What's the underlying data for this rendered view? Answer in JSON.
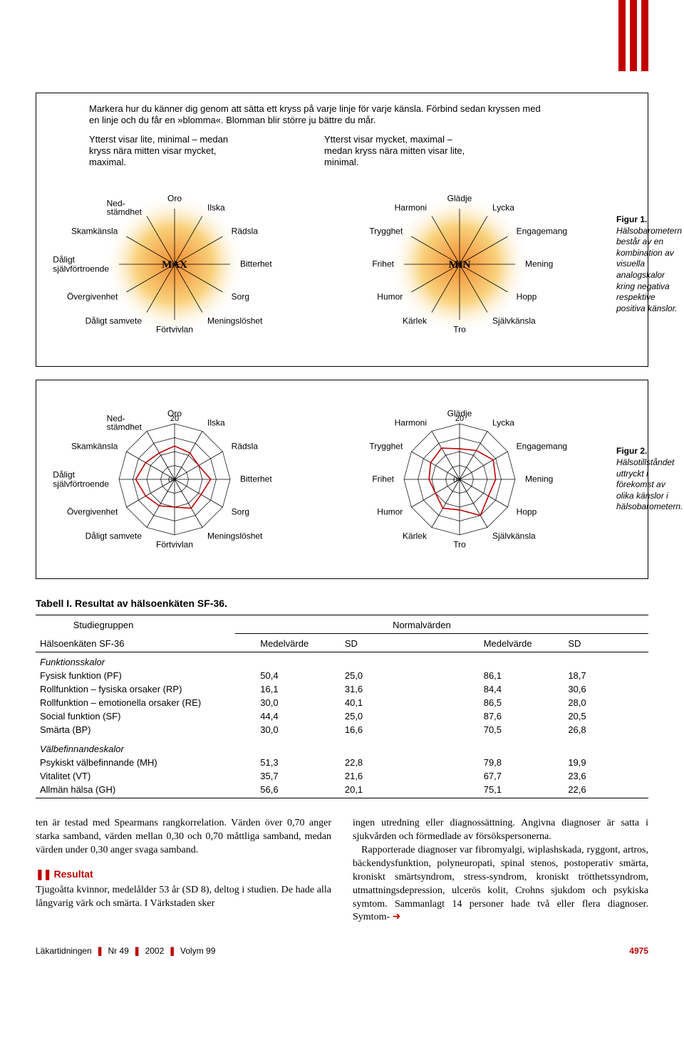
{
  "colors": {
    "stripe1": "#c00000",
    "stripe2": "#c00000",
    "stripe3": "#c00000",
    "box_border": "#000000",
    "radar_fill": "#f9d27e",
    "radar_core": "#f08b2e",
    "radar_line": "#000000",
    "grid": "#000000",
    "data_line": "#c00000",
    "accent": "#c00000"
  },
  "instr": {
    "top": "Markera hur du känner dig genom att sätta ett kryss på varje linje för varje känsla. Förbind sedan kryssen med en linje och du får en »blomma«. Blomman blir större ju bättre du mår.",
    "left": "Ytterst visar lite, minimal – medan kryss nära mitten visar mycket, maximal.",
    "right": "Ytterst visar mycket, maximal – medan kryss nära mitten visar lite, minimal."
  },
  "fig1": {
    "center_left": "MAX",
    "center_right": "MIN",
    "neg_labels": [
      "Oro",
      "Ilska",
      "Rädsla",
      "Bitterhet",
      "Sorg",
      "Meningslöshet",
      "Förtvivlan",
      "Dåligt samvete",
      "Övergivenhet",
      "Dåligt\nsjälvförtroende",
      "Skamkänsla",
      "Ned-\nstämdhet"
    ],
    "pos_labels": [
      "Glädje",
      "Lycka",
      "Engagemang",
      "Mening",
      "Hopp",
      "Självkänsla",
      "Tro",
      "Kärlek",
      "Humor",
      "Frihet",
      "Trygghet",
      "Harmoni"
    ],
    "caption_bold": "Figur 1.",
    "caption": "Hälsobarometern består av en kombination av visuella analogskalor kring negativa respektive positiva känslor."
  },
  "fig2": {
    "scale_outer": "20",
    "scale_inner": "0",
    "neg_values": [
      12,
      11,
      10,
      13,
      11,
      12,
      10,
      11,
      12,
      14,
      12,
      11
    ],
    "pos_values": [
      11,
      12,
      14,
      13,
      12,
      15,
      11,
      12,
      10,
      11,
      12,
      13
    ],
    "caption_bold": "Figur 2.",
    "caption": "Hälsotillståndet uttryckt i förekomst av olika känslor i hälsobarometern."
  },
  "table": {
    "title": "Tabell I. Resultat av hälsoenkäten SF-36.",
    "head_group1": "Studiegruppen",
    "head_group2": "Normalvärden",
    "col0": "Hälsoenkäten SF-36",
    "col1": "Medelvärde",
    "col2": "SD",
    "col3": "Medelvärde",
    "col4": "SD",
    "sec1": "Funktionsskalor",
    "rows1": [
      {
        "l": "Fysisk funktion (PF)",
        "a": "50,4",
        "b": "25,0",
        "c": "86,1",
        "d": "18,7"
      },
      {
        "l": "Rollfunktion – fysiska orsaker (RP)",
        "a": "16,1",
        "b": "31,6",
        "c": "84,4",
        "d": "30,6"
      },
      {
        "l": "Rollfunktion – emotionella orsaker (RE)",
        "a": "30,0",
        "b": "40,1",
        "c": "86,5",
        "d": "28,0"
      },
      {
        "l": "Social funktion (SF)",
        "a": "44,4",
        "b": "25,0",
        "c": "87,6",
        "d": "20,5"
      },
      {
        "l": "Smärta (BP)",
        "a": "30,0",
        "b": "16,6",
        "c": "70,5",
        "d": "26,8"
      }
    ],
    "sec2": "Välbefinnandeskalor",
    "rows2": [
      {
        "l": "Psykiskt välbefinnande (MH)",
        "a": "51,3",
        "b": "22,8",
        "c": "79,8",
        "d": "19,9"
      },
      {
        "l": "Vitalitet (VT)",
        "a": "35,7",
        "b": "21,6",
        "c": "67,7",
        "d": "23,6"
      },
      {
        "l": "Allmän hälsa (GH)",
        "a": "56,6",
        "b": "20,1",
        "c": "75,1",
        "d": "22,6"
      }
    ]
  },
  "body": {
    "left1": "ten är testad med Spearmans rangkorrelation. Värden över 0,70 anger starka samband, värden mellan 0,30 och 0,70 måttliga samband, medan värden under 0,30 anger svaga samband.",
    "result_head": "Resultat",
    "left2": "Tjugoåtta kvinnor, medelålder 53 år (SD 8), deltog i studien. De hade alla långvarig värk och smärta. I Värkstaden sker",
    "right": "ingen utredning eller diagnossättning. Angivna diagnoser är satta i sjukvården och förmedlade av försökspersonerna.\n   Rapporterade diagnoser var fibromyalgi, wiplashskada, ryggont, artros, bäckendysfunktion, polyneuropati, spinal stenos, postoperativ smärta, kroniskt smärtsyndrom, stress-syndrom, kroniskt trötthetssyndrom, utmattningsdepression, ulcerös kolit, Crohns sjukdom och psykiska symtom. Sammanlagt 14 personer hade två eller flera diagnoser. Symtom-"
  },
  "footer": {
    "journal": "Läkartidningen",
    "issue": "Nr 49",
    "year": "2002",
    "volume": "Volym 99",
    "page": "4975"
  }
}
